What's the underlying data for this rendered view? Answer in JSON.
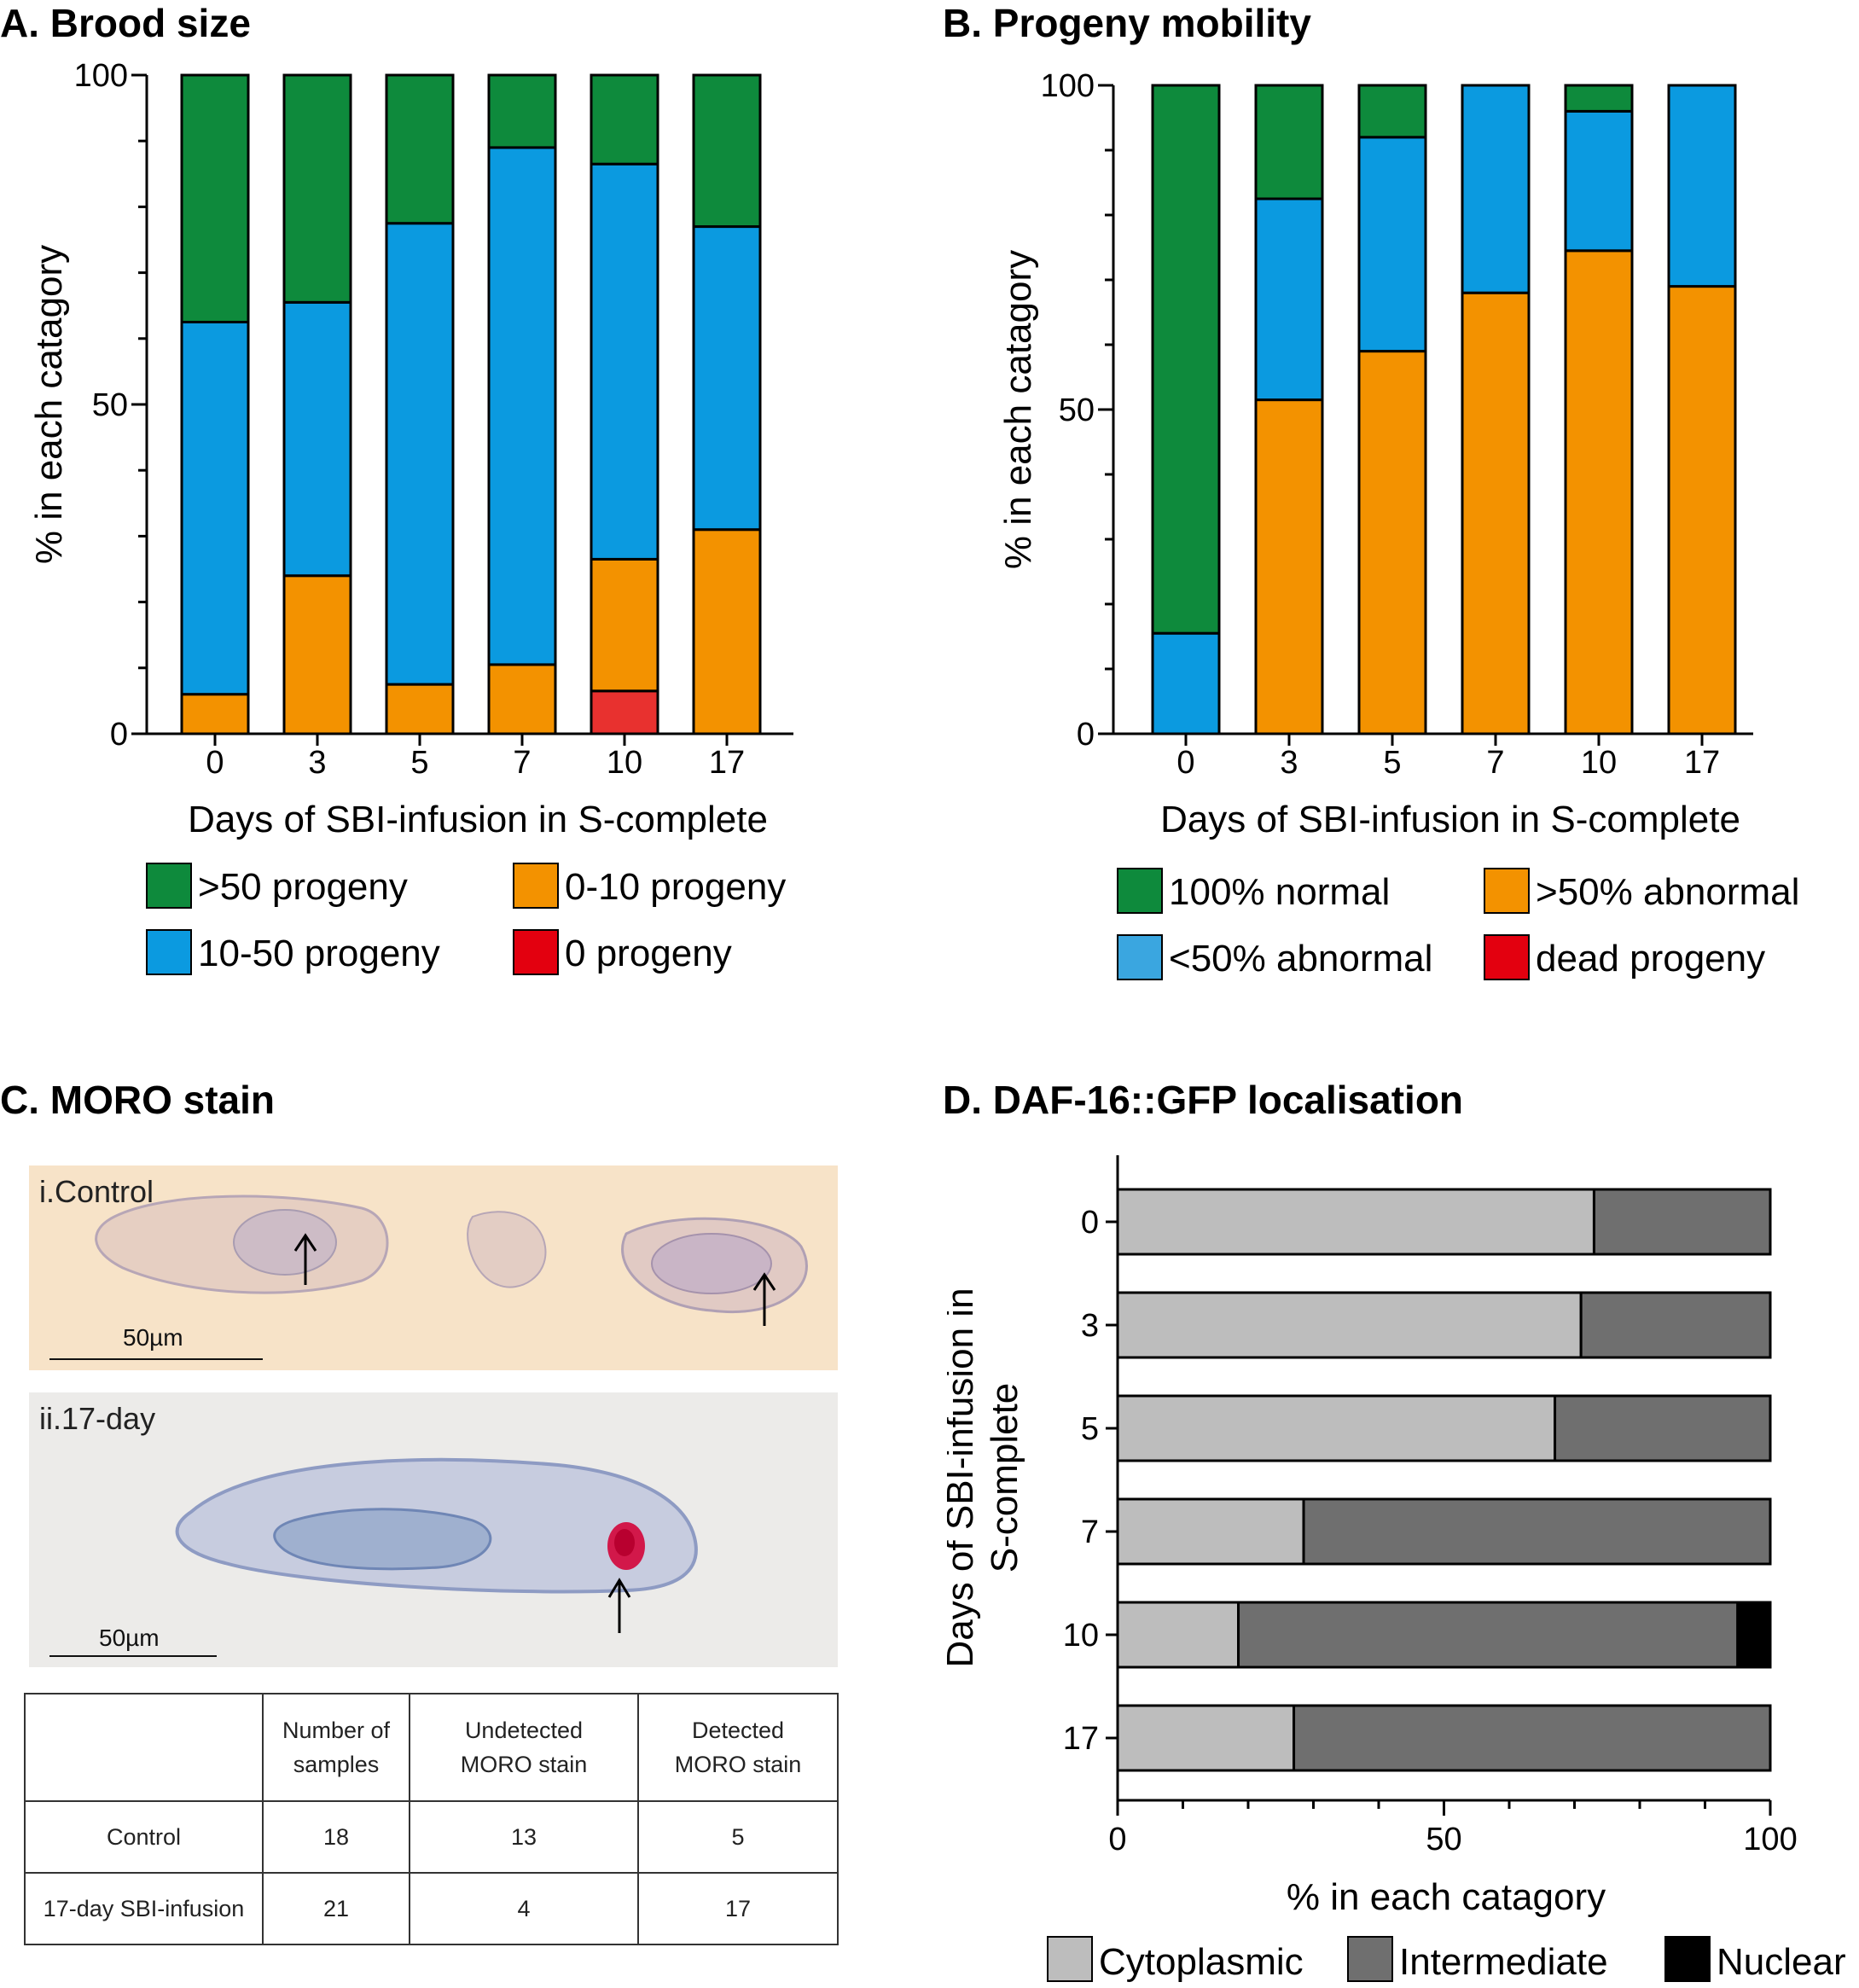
{
  "colors": {
    "green": "#0e8a3c",
    "blue": "#0b9ae0",
    "orange": "#f39200",
    "red": "#e8312f",
    "legend_red": "#e3000f",
    "light_blue": "#3aa6e0",
    "cytoplasmic": "#bdbdbd",
    "intermediate": "#6f6f6f",
    "nuclear": "#000000"
  },
  "panels": {
    "A": {
      "title": "A.  Brood size"
    },
    "B": {
      "title": "B. Progeny mobility"
    },
    "C": {
      "title": "C. MORO stain"
    },
    "D": {
      "title": "D. DAF-16::GFP localisation"
    }
  },
  "chart_data": [
    {
      "id": "A",
      "type": "bar",
      "stacked": true,
      "title": "A.  Brood size",
      "xlabel": "Days of SBI-infusion in S-complete",
      "ylabel": "% in each catagory",
      "ylim": [
        0,
        100
      ],
      "yticks": [
        "0",
        "50",
        "100"
      ],
      "categories": [
        "0",
        "3",
        "5",
        "7",
        "10",
        "17"
      ],
      "series": [
        {
          "name": "0 progeny",
          "color": "#e8312f",
          "values": [
            0,
            0,
            0,
            0,
            6.5,
            0
          ]
        },
        {
          "name": "0-10 progeny",
          "color": "#f39200",
          "values": [
            6,
            24,
            7.5,
            10.5,
            20,
            31
          ]
        },
        {
          "name": "10-50 progeny",
          "color": "#0b9ae0",
          "values": [
            56.5,
            41.5,
            70,
            78.5,
            60,
            46
          ]
        },
        {
          "name": ">50 progeny",
          "color": "#0e8a3c",
          "values": [
            37.5,
            34.5,
            22.5,
            11,
            13.5,
            23
          ]
        }
      ],
      "legend": [
        {
          "label": ">50 progeny",
          "color": "#0e8a3c"
        },
        {
          "label": "0-10 progeny",
          "color": "#f39200"
        },
        {
          "label": "10-50 progeny",
          "color": "#0b9ae0"
        },
        {
          "label": "0 progeny",
          "color": "#e3000f"
        }
      ],
      "legend_position": "bottom"
    },
    {
      "id": "B",
      "type": "bar",
      "stacked": true,
      "title": "B. Progeny mobility",
      "xlabel": "Days of SBI-infusion in S-complete",
      "ylabel": "% in each catagory",
      "ylim": [
        0,
        100
      ],
      "yticks": [
        "0",
        "50",
        "100"
      ],
      "categories": [
        "0",
        "3",
        "5",
        "7",
        "10",
        "17"
      ],
      "series": [
        {
          "name": ">50% abnormal",
          "color": "#f39200",
          "values": [
            0,
            51.5,
            59,
            68,
            74.5,
            69
          ]
        },
        {
          "name": "<50% abnormal",
          "color": "#0b9ae0",
          "values": [
            15.5,
            31,
            33,
            32,
            21.5,
            31
          ]
        },
        {
          "name": "100% normal",
          "color": "#0e8a3c",
          "values": [
            84.5,
            17.5,
            8,
            0,
            4,
            0
          ]
        }
      ],
      "legend": [
        {
          "label": "100% normal",
          "color": "#0e8a3c"
        },
        {
          "label": ">50% abnormal",
          "color": "#f39200"
        },
        {
          "label": "<50% abnormal",
          "color": "#3aa6e0"
        },
        {
          "label": "dead progeny",
          "color": "#e3000f"
        }
      ],
      "legend_position": "bottom"
    },
    {
      "id": "D",
      "type": "bar",
      "orientation": "horizontal",
      "stacked": true,
      "title": "D. DAF-16::GFP localisation",
      "xlabel": "% in each catagory",
      "ylabel": "Days of SBI-infusion in S-complete",
      "xlim": [
        0,
        100
      ],
      "xticks": [
        "0",
        "50",
        "100"
      ],
      "categories": [
        "0",
        "3",
        "5",
        "7",
        "10",
        "17"
      ],
      "series": [
        {
          "name": "Cytoplasmic",
          "color": "#bdbdbd",
          "values": [
            73,
            71,
            67,
            28.5,
            18.5,
            27
          ]
        },
        {
          "name": "Intermediate",
          "color": "#6f6f6f",
          "values": [
            27,
            29,
            33,
            71.5,
            76.5,
            73
          ]
        },
        {
          "name": "Nuclear",
          "color": "#000000",
          "values": [
            0,
            0,
            0,
            0,
            5,
            0
          ]
        }
      ],
      "legend": [
        {
          "label": "Cytoplasmic",
          "color": "#bdbdbd"
        },
        {
          "label": "Intermediate",
          "color": "#6f6f6f"
        },
        {
          "label": "Nuclear",
          "color": "#000000"
        }
      ],
      "legend_position": "bottom"
    }
  ],
  "micrographs": {
    "control": {
      "label": "i.Control",
      "scale": "50µm",
      "background": "#f7e3c8"
    },
    "day17": {
      "label": "ii.17-day",
      "scale": "50µm",
      "background": "#ecebe9"
    }
  },
  "moro_table": {
    "headers": [
      "",
      "Number of\nsamples",
      "Undetected\nMORO stain",
      "Detected\nMORO stain"
    ],
    "rows": [
      [
        "Control",
        "18",
        "13",
        "5"
      ],
      [
        "17-day SBI-infusion",
        "21",
        "4",
        "17"
      ]
    ]
  }
}
